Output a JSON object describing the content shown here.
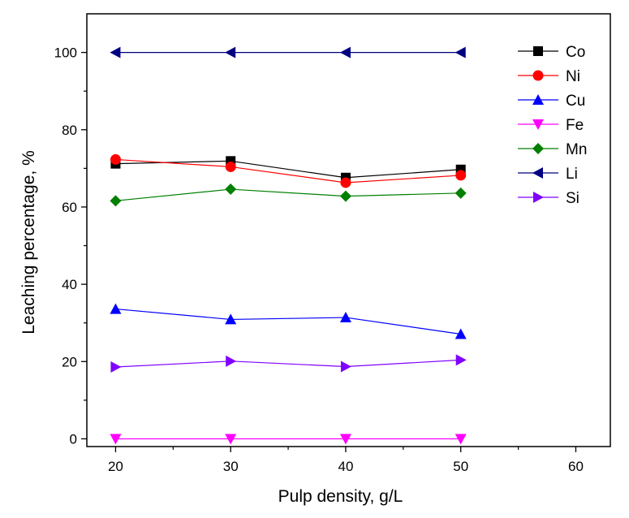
{
  "chart_data": {
    "type": "line",
    "xlabel": "Pulp density, g/L",
    "ylabel": "Leaching percentage, %",
    "xlim": [
      17.5,
      63
    ],
    "ylim": [
      -2,
      110
    ],
    "xticks": [
      20,
      30,
      40,
      50,
      60
    ],
    "yticks": [
      0,
      20,
      40,
      60,
      80,
      100
    ],
    "grid": false,
    "legend_position": "top-right",
    "x": [
      20,
      30,
      40,
      50
    ],
    "series": [
      {
        "name": "Co",
        "values": [
          71.2,
          71.9,
          67.6,
          69.7
        ],
        "color": "#000000",
        "marker": "square"
      },
      {
        "name": "Ni",
        "values": [
          72.3,
          70.4,
          66.3,
          68.2
        ],
        "color": "#ff0000",
        "marker": "circle"
      },
      {
        "name": "Cu",
        "values": [
          33.6,
          30.9,
          31.4,
          27.1
        ],
        "color": "#0000ff",
        "marker": "triangle-up"
      },
      {
        "name": "Fe",
        "values": [
          0,
          0,
          0,
          0
        ],
        "color": "#ff00ff",
        "marker": "triangle-down"
      },
      {
        "name": "Mn",
        "values": [
          61.6,
          64.6,
          62.8,
          63.6
        ],
        "color": "#008000",
        "marker": "diamond"
      },
      {
        "name": "Li",
        "values": [
          100,
          100,
          100,
          100
        ],
        "color": "#000080",
        "marker": "triangle-left"
      },
      {
        "name": "Si",
        "values": [
          18.6,
          20.1,
          18.7,
          20.4
        ],
        "color": "#8000ff",
        "marker": "triangle-right"
      }
    ]
  }
}
